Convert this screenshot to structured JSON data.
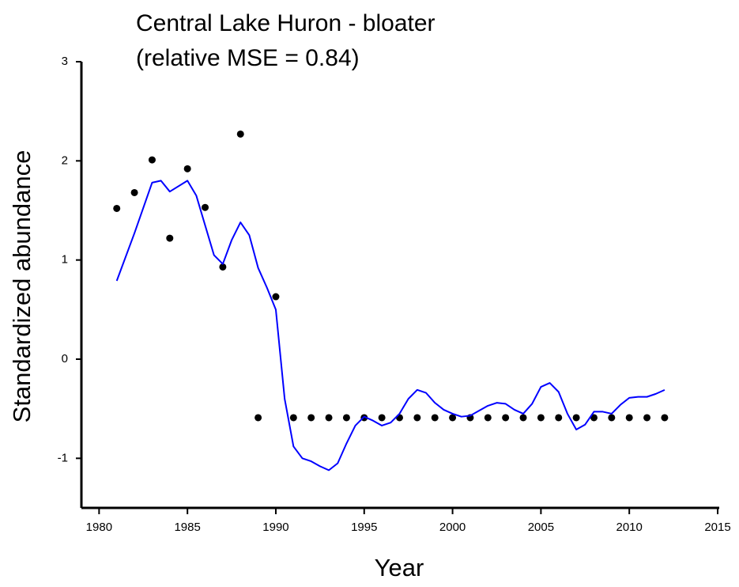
{
  "chart_data": {
    "type": "scatter",
    "title": "Central Lake Huron - bloater",
    "subtitle": "(relative MSE = 0.84)",
    "x_label": "Year",
    "y_label": "Standardized abundance",
    "xlim": [
      1979,
      2015
    ],
    "ylim": [
      -1.5,
      3
    ],
    "xticks": [
      1980,
      1985,
      1990,
      1995,
      2000,
      2005,
      2010,
      2015
    ],
    "yticks": [
      -1,
      0,
      1,
      2,
      3
    ],
    "series": [
      {
        "type": "scatter",
        "color": "#000000",
        "x": [
          1981,
          1982,
          1983,
          1984,
          1985,
          1986,
          1987,
          1988,
          1989,
          1990,
          1991,
          1992,
          1993,
          1994,
          1995,
          1996,
          1997,
          1998,
          1999,
          2000,
          2001,
          2002,
          2003,
          2004,
          2005,
          2006,
          2007,
          2008,
          2009,
          2010,
          2011,
          2012
        ],
        "values": [
          1.52,
          1.68,
          2.01,
          1.22,
          1.92,
          1.53,
          0.93,
          2.27,
          -0.59,
          0.63,
          -0.59,
          -0.59,
          -0.59,
          -0.59,
          -0.59,
          -0.59,
          -0.59,
          -0.59,
          -0.59,
          -0.59,
          -0.59,
          -0.59,
          -0.59,
          -0.59,
          -0.59,
          -0.59,
          -0.59,
          -0.59,
          -0.59,
          -0.59,
          -0.59,
          -0.59
        ]
      },
      {
        "type": "line",
        "color": "#0000ff",
        "x": [
          1981,
          1982,
          1983,
          1983.5,
          1984,
          1985,
          1985.5,
          1986,
          1986.5,
          1987,
          1987.5,
          1988,
          1988.5,
          1989,
          1989.5,
          1990,
          1990.5,
          1991,
          1991.5,
          1992,
          1992.5,
          1993,
          1993.5,
          1994,
          1994.5,
          1995,
          1995.5,
          1996,
          1996.5,
          1997,
          1997.5,
          1998,
          1998.5,
          1999,
          1999.5,
          2000,
          2000.5,
          2001,
          2001.5,
          2002,
          2002.5,
          2003,
          2003.5,
          2004,
          2004.5,
          2005,
          2005.5,
          2006,
          2006.5,
          2007,
          2007.5,
          2008,
          2008.5,
          2009,
          2009.5,
          2010,
          2010.5,
          2011,
          2011.5,
          2012
        ],
        "values": [
          0.79,
          1.27,
          1.78,
          1.8,
          1.69,
          1.8,
          1.65,
          1.35,
          1.05,
          0.96,
          1.2,
          1.38,
          1.25,
          0.92,
          0.72,
          0.5,
          -0.4,
          -0.88,
          -1.0,
          -1.03,
          -1.08,
          -1.12,
          -1.05,
          -0.85,
          -0.67,
          -0.58,
          -0.62,
          -0.67,
          -0.64,
          -0.55,
          -0.4,
          -0.31,
          -0.34,
          -0.44,
          -0.51,
          -0.55,
          -0.58,
          -0.57,
          -0.52,
          -0.47,
          -0.44,
          -0.45,
          -0.51,
          -0.55,
          -0.45,
          -0.28,
          -0.24,
          -0.33,
          -0.55,
          -0.71,
          -0.66,
          -0.53,
          -0.53,
          -0.55,
          -0.46,
          -0.39,
          -0.38,
          -0.38,
          -0.35,
          -0.31
        ]
      }
    ]
  }
}
